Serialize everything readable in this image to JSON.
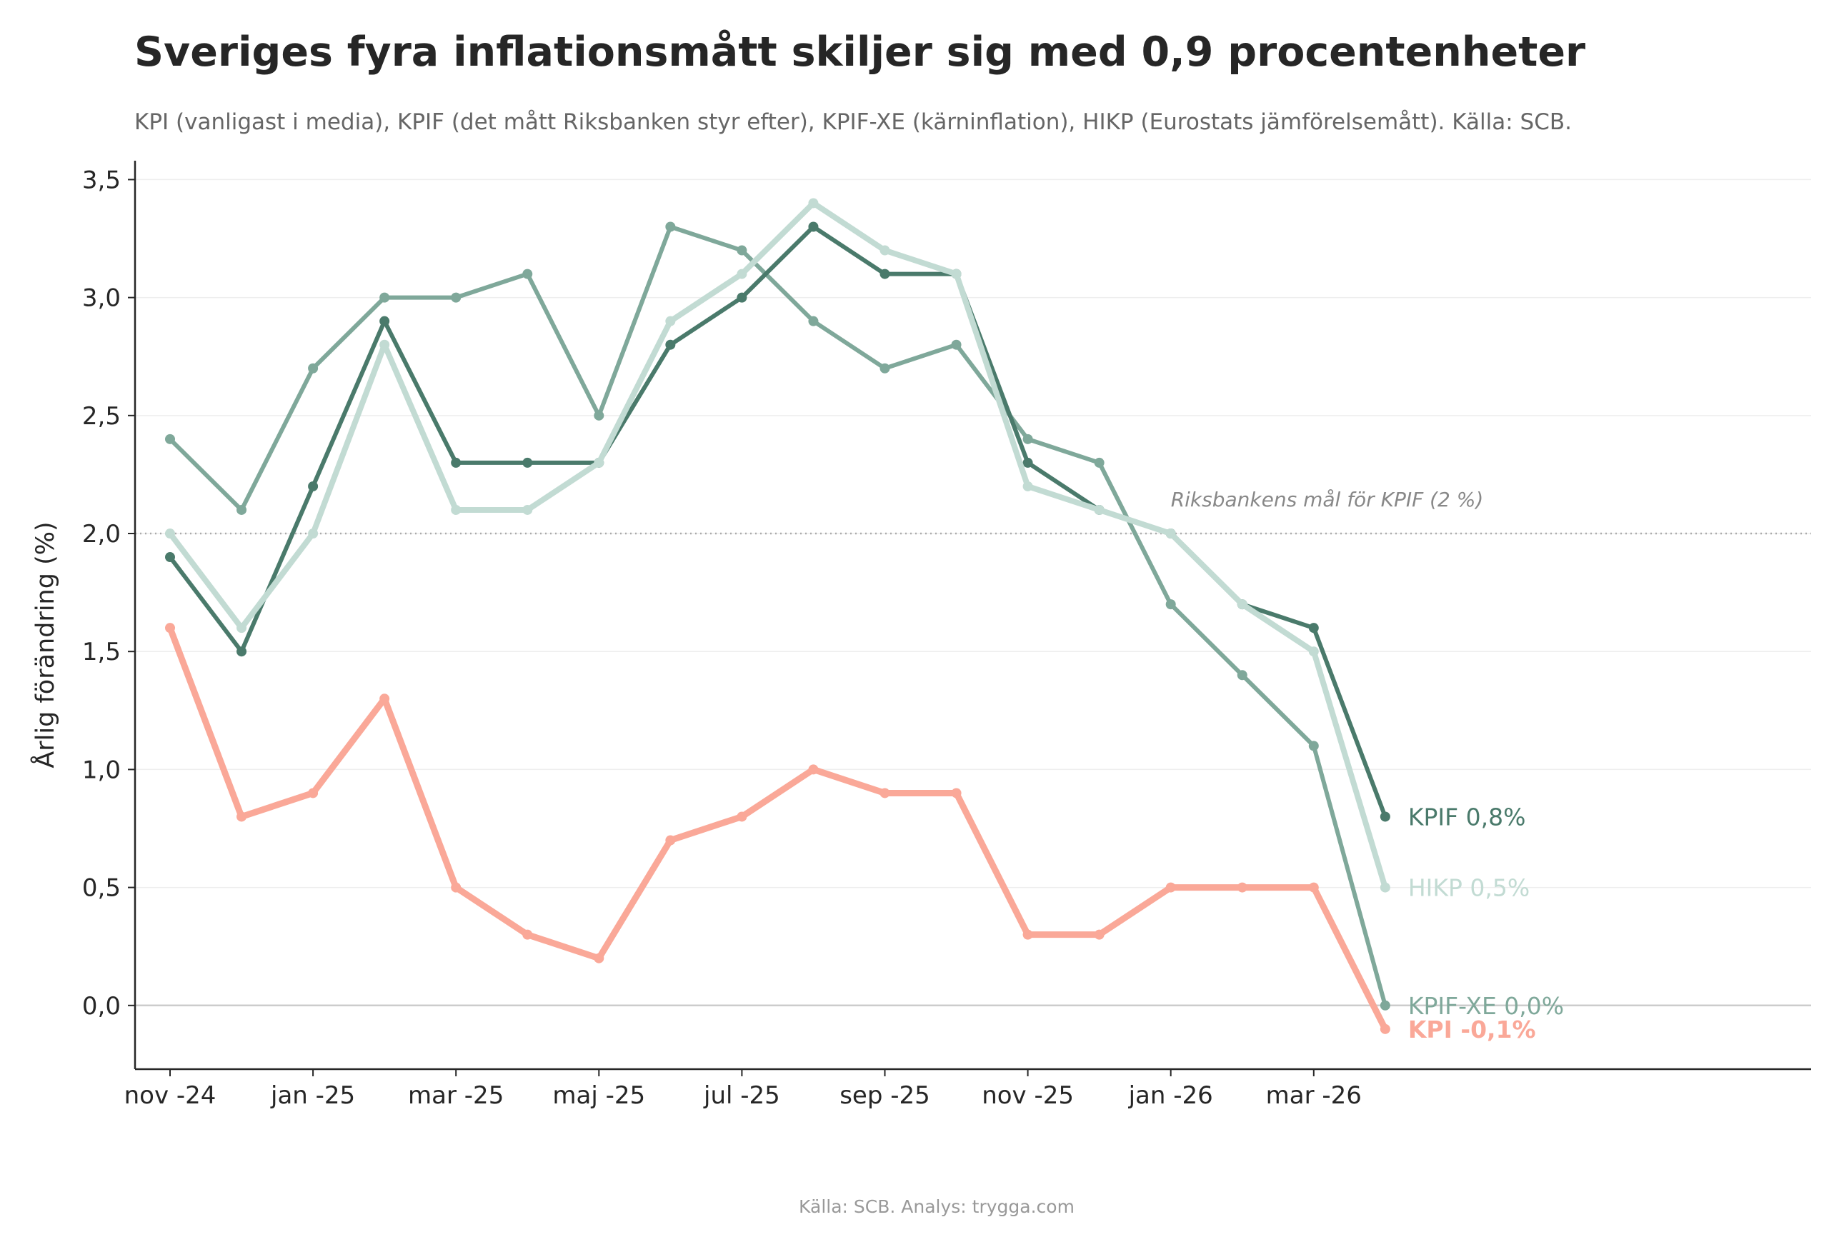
{
  "title": "Sveriges fyra inflationsmått skiljer sig med 0,9 procentenheter",
  "subtitle": "KPI (vanligast i media), KPIF (det mått Riksbanken styr efter), KPIF-XE (kärninflation), HIKP (Eurostats jämförelsemått). Källa: SCB.",
  "footer": "Källa: SCB. Analys: trygga.com",
  "chart_data": {
    "type": "line",
    "title": "Sveriges fyra inflationsmått skiljer sig med 0,9 procentenheter",
    "subtitle": "KPI (vanligast i media), KPIF (det mått Riksbanken styr efter), KPIF-XE (kärninflation), HIKP (Eurostats jämförelsemått). Källa: SCB.",
    "ylabel": "Årlig förändring (%)",
    "xlabel": "",
    "ylim": [
      -0.27,
      3.58
    ],
    "yticks": [
      0.0,
      0.5,
      1.0,
      1.5,
      2.0,
      2.5,
      3.0,
      3.5
    ],
    "ytick_labels": [
      "0,0",
      "0,5",
      "1,0",
      "1,5",
      "2,0",
      "2,5",
      "3,0",
      "3,5"
    ],
    "x": [
      "nov -24",
      "dec -24",
      "jan -25",
      "feb -25",
      "mar -25",
      "apr -25",
      "maj -25",
      "jun -25",
      "jul -25",
      "aug -25",
      "sep -25",
      "okt -25",
      "nov -25",
      "dec -25",
      "jan -26",
      "feb -26",
      "mar -26",
      "apr -26"
    ],
    "xtick_labels": [
      "nov -24",
      "jan -25",
      "mar -25",
      "maj -25",
      "jul -25",
      "sep -25",
      "nov -25",
      "jan -26",
      "mar -26"
    ],
    "xtick_index": [
      0,
      2,
      4,
      6,
      8,
      10,
      12,
      14,
      16
    ],
    "grid": "horizontal",
    "reference_line": {
      "value": 2.0,
      "label": "Riksbankens mål för KPIF (2 %)"
    },
    "series": [
      {
        "name": "KPIF-XE",
        "color": "#7fa89a",
        "end_label": "KPIF-XE  0,0%",
        "bold": false,
        "values": [
          2.4,
          2.1,
          2.7,
          3.0,
          3.0,
          3.1,
          2.5,
          3.3,
          3.2,
          2.9,
          2.7,
          2.8,
          2.4,
          2.3,
          1.7,
          1.4,
          1.1,
          0.0
        ]
      },
      {
        "name": "KPIF",
        "color": "#4a7a6b",
        "end_label": "KPIF  0,8%",
        "bold": false,
        "values": [
          1.9,
          1.5,
          2.2,
          2.9,
          2.3,
          2.3,
          2.3,
          2.8,
          3.0,
          3.3,
          3.1,
          3.1,
          2.3,
          2.1,
          2.0,
          1.7,
          1.6,
          0.8
        ]
      },
      {
        "name": "HIKP",
        "color": "#c2dbd3",
        "end_label": "HIKP  0,5%",
        "bold": false,
        "values": [
          2.0,
          1.6,
          2.0,
          2.8,
          2.1,
          2.1,
          2.3,
          2.9,
          3.1,
          3.4,
          3.2,
          3.1,
          2.2,
          2.1,
          2.0,
          1.7,
          1.5,
          0.5
        ]
      },
      {
        "name": "KPI",
        "color": "#faa898",
        "end_label": "KPI  -0,1%",
        "bold": true,
        "values": [
          1.6,
          0.8,
          0.9,
          1.3,
          0.5,
          0.3,
          0.2,
          0.7,
          0.8,
          1.0,
          0.9,
          0.9,
          0.3,
          0.3,
          0.5,
          0.5,
          0.5,
          -0.1
        ]
      }
    ]
  }
}
